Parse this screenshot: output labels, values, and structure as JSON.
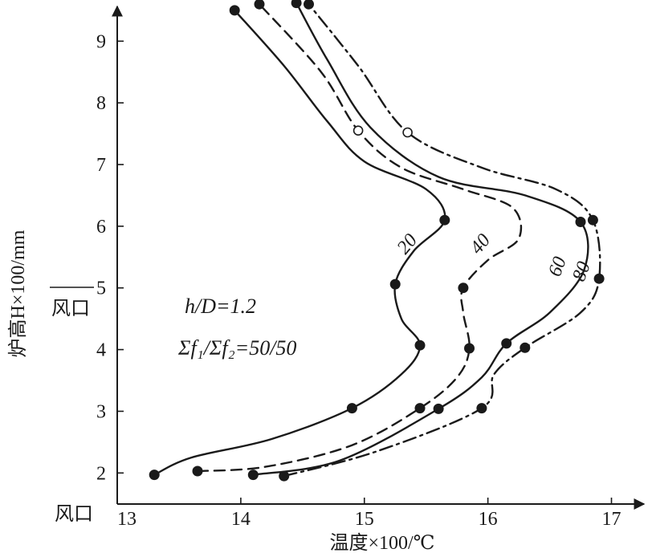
{
  "chart_data": {
    "type": "line",
    "title": "",
    "xlabel": "温度×100/℃",
    "ylabel": "炉高H×100/mm",
    "x_origin_label": "风口",
    "y_origin_label": "风口",
    "xlim": [
      13,
      17.3
    ],
    "ylim": [
      1.55,
      9.8
    ],
    "x_ticks": [
      "13",
      "14",
      "15",
      "16",
      "17"
    ],
    "y_ticks": [
      "2",
      "3",
      "4",
      "5",
      "6",
      "7",
      "8",
      "9"
    ],
    "grid": false,
    "annotations": [
      "h/D=1.2",
      "Σf₁/Σf₂=50/50"
    ],
    "series": [
      {
        "name": "20",
        "line_style": "solid",
        "points": [
          [
            13.3,
            1.97
          ],
          [
            14.9,
            3.05
          ],
          [
            15.45,
            4.07
          ],
          [
            15.25,
            5.06
          ],
          [
            15.65,
            6.1
          ],
          [
            13.95,
            9.5
          ]
        ],
        "curve": [
          [
            13.3,
            1.97
          ],
          [
            13.6,
            2.25
          ],
          [
            14.25,
            2.55
          ],
          [
            14.9,
            3.05
          ],
          [
            15.3,
            3.6
          ],
          [
            15.45,
            4.07
          ],
          [
            15.3,
            4.5
          ],
          [
            15.25,
            5.06
          ],
          [
            15.4,
            5.6
          ],
          [
            15.65,
            6.1
          ],
          [
            15.5,
            6.6
          ],
          [
            15.0,
            7.05
          ],
          [
            14.7,
            7.7
          ],
          [
            14.35,
            8.6
          ],
          [
            13.95,
            9.5
          ]
        ]
      },
      {
        "name": "40",
        "line_style": "dashed",
        "points": [
          [
            13.65,
            2.03
          ],
          [
            15.45,
            3.05
          ],
          [
            15.85,
            4.02
          ],
          [
            15.8,
            5.0
          ],
          [
            14.95,
            7.55
          ],
          [
            14.15,
            9.6
          ]
        ],
        "curve": [
          [
            13.65,
            2.03
          ],
          [
            14.2,
            2.1
          ],
          [
            14.9,
            2.45
          ],
          [
            15.45,
            3.05
          ],
          [
            15.75,
            3.55
          ],
          [
            15.85,
            4.02
          ],
          [
            15.8,
            4.6
          ],
          [
            15.8,
            5.0
          ],
          [
            16.0,
            5.45
          ],
          [
            16.25,
            5.8
          ],
          [
            16.2,
            6.3
          ],
          [
            15.8,
            6.6
          ],
          [
            15.3,
            6.95
          ],
          [
            14.95,
            7.55
          ],
          [
            14.65,
            8.5
          ],
          [
            14.15,
            9.6
          ]
        ]
      },
      {
        "name": "60",
        "line_style": "solid",
        "points": [
          [
            14.1,
            1.97
          ],
          [
            15.6,
            3.04
          ],
          [
            16.15,
            4.1
          ],
          [
            16.75,
            6.07
          ],
          [
            14.45,
            9.62
          ]
        ],
        "curve": [
          [
            14.1,
            1.97
          ],
          [
            14.8,
            2.2
          ],
          [
            15.6,
            3.04
          ],
          [
            15.95,
            3.55
          ],
          [
            16.15,
            4.1
          ],
          [
            16.5,
            4.6
          ],
          [
            16.78,
            5.3
          ],
          [
            16.75,
            6.07
          ],
          [
            16.3,
            6.5
          ],
          [
            15.6,
            6.8
          ],
          [
            15.05,
            7.6
          ],
          [
            14.7,
            8.7
          ],
          [
            14.45,
            9.62
          ]
        ]
      },
      {
        "name": "80",
        "line_style": "dashdot",
        "points": [
          [
            14.35,
            1.95
          ],
          [
            15.95,
            3.05
          ],
          [
            16.3,
            4.03
          ],
          [
            16.9,
            5.15
          ],
          [
            16.85,
            6.1
          ],
          [
            15.35,
            7.52
          ],
          [
            14.55,
            9.6
          ]
        ],
        "curve": [
          [
            14.35,
            1.95
          ],
          [
            15.1,
            2.35
          ],
          [
            15.95,
            3.05
          ],
          [
            16.05,
            3.6
          ],
          [
            16.3,
            4.03
          ],
          [
            16.75,
            4.6
          ],
          [
            16.9,
            5.15
          ],
          [
            16.85,
            6.1
          ],
          [
            16.55,
            6.6
          ],
          [
            15.95,
            6.95
          ],
          [
            15.35,
            7.52
          ],
          [
            14.95,
            8.6
          ],
          [
            14.55,
            9.6
          ]
        ]
      }
    ],
    "open_markers": [
      [
        14.95,
        7.55
      ],
      [
        15.35,
        7.52
      ]
    ]
  }
}
